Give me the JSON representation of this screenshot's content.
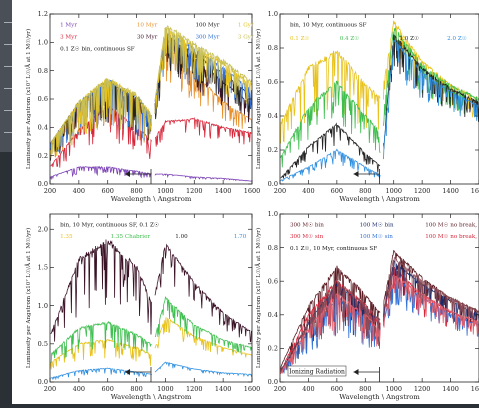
{
  "panels": [
    {
      "id": "tl",
      "xlabel": "Wavelength \\ Angstrom",
      "ylabel": "Luminosity per Angstrom (x10⁷ L☉/Å at 1 M☉/yr)",
      "xlim": [
        200,
        1600
      ],
      "ylim": [
        0,
        1.2
      ],
      "xticks": [
        "200",
        "400",
        "600",
        "800",
        "1000",
        "1200",
        "1400",
        "1600"
      ],
      "yticks": [
        "0.0",
        "0.2",
        "0.4",
        "0.6",
        "0.8",
        "1.0",
        "1.2"
      ],
      "annotations": [
        {
          "text": "1 Myr",
          "color": "#7a3fb5"
        },
        {
          "text": "10 Myr",
          "color": "#e8912c"
        },
        {
          "text": "100 Myr",
          "color": "#222222"
        },
        {
          "text": "1 Gyr",
          "color": "#e8c21a"
        },
        {
          "text": "3 Myr",
          "color": "#d6263a"
        },
        {
          "text": "30 Myr",
          "color": "#3a1226"
        },
        {
          "text": "300 Myr",
          "color": "#2f6fd6"
        },
        {
          "text": "3 Gyr",
          "color": "#c8bf55"
        },
        {
          "text": "0.1 Z☉ bin, continuous SF",
          "color": "#111111"
        }
      ]
    },
    {
      "id": "tr",
      "xlabel": "Wavelength \\ Angstrom",
      "ylabel": "Luminosity per Angstrom (x10⁷ L☉/Å at 1 M☉/yr)",
      "xlim": [
        200,
        1600
      ],
      "ylim": [
        0,
        1.0
      ],
      "xticks": [
        "200",
        "400",
        "600",
        "800",
        "1000",
        "1200",
        "1400",
        "1600"
      ],
      "yticks": [
        "0.0",
        "0.2",
        "0.4",
        "0.6",
        "0.8",
        "1.0"
      ],
      "annotations": [
        {
          "text": "bin, 10 Myr, continuous SF",
          "color": "#111111"
        },
        {
          "text": "0.1 Z☉",
          "color": "#e8c21a"
        },
        {
          "text": "0.4 Z☉",
          "color": "#3fbf4f"
        },
        {
          "text": "1.0 Z☉",
          "color": "#222222"
        },
        {
          "text": "2.0 Z☉",
          "color": "#2f8fe0"
        }
      ]
    },
    {
      "id": "bl",
      "xlabel": "Wavelength \\ Angstrom",
      "ylabel": "Luminosity per Angstrom (x10⁷ L☉/Å at 1 M☉/yr)",
      "xlim": [
        200,
        1600
      ],
      "ylim": [
        0,
        2.2
      ],
      "xticks": [
        "200",
        "400",
        "600",
        "800",
        "1000",
        "1200",
        "1400",
        "1600"
      ],
      "yticks": [
        "0.0",
        "0.5",
        "1.0",
        "1.5",
        "2.0"
      ],
      "annotations": [
        {
          "text": "bin, 10 Myr, continuous SF, 0.1 Z☉",
          "color": "#111111"
        },
        {
          "text": "1.35",
          "color": "#e8c21a"
        },
        {
          "text": "1.35 Chabrier",
          "color": "#3fbf4f"
        },
        {
          "text": "1.00",
          "color": "#222222"
        },
        {
          "text": "1.70",
          "color": "#2f8fe0"
        }
      ]
    },
    {
      "id": "br",
      "xlabel": "Wavelength \\ Angstrom",
      "ylabel": "Luminosity per Angstrom (x10⁷ L☉/Å at 1 M☉/yr)",
      "xlim": [
        200,
        1600
      ],
      "ylim": [
        0,
        1.0
      ],
      "xticks": [
        "200",
        "400",
        "600",
        "800",
        "1000",
        "1200",
        "1400",
        "1600"
      ],
      "yticks": [
        "0.0",
        "0.2",
        "0.4",
        "0.6",
        "0.8",
        "1.0"
      ],
      "annotations": [
        {
          "text": "300 M☉ bin",
          "color": "#5a1a22"
        },
        {
          "text": "100 M☉ bin",
          "color": "#1a2a6a"
        },
        {
          "text": "100 M☉ no break, bin",
          "color": "#5a1a22"
        },
        {
          "text": "300 M☉ sin",
          "color": "#d6263a"
        },
        {
          "text": "100 M☉ sin",
          "color": "#2f6fd6"
        },
        {
          "text": "100 M☉ no break, sin",
          "color": "#d6263a"
        },
        {
          "text": "0.1 Z☉, 10 Myr, continuous SF",
          "color": "#111111"
        }
      ],
      "ionizing_label": "Ionizing Radiation"
    }
  ],
  "colors": {
    "background": "#2b2f36",
    "sheet": "#ffffff"
  },
  "chart_data": [
    {
      "type": "line",
      "xlabel": "Wavelength \\ Angstrom",
      "ylabel": "Luminosity per Angstrom (x10⁷ L☉/Å at 1 M☉/yr)",
      "xlim": [
        200,
        1600
      ],
      "ylim": [
        0,
        1.2
      ],
      "x": [
        200,
        400,
        600,
        800,
        912,
        1000,
        1200,
        1400,
        1600
      ],
      "series": [
        {
          "name": "1 Myr",
          "color": "#7a3fb5",
          "values": [
            0.05,
            0.12,
            0.12,
            0.09,
            0.07,
            0.07,
            0.05,
            0.04,
            0.02
          ]
        },
        {
          "name": "3 Myr",
          "color": "#d6263a",
          "values": [
            0.12,
            0.38,
            0.55,
            0.4,
            0.3,
            0.44,
            0.46,
            0.4,
            0.36
          ]
        },
        {
          "name": "10 Myr",
          "color": "#e8912c",
          "values": [
            0.28,
            0.55,
            0.7,
            0.58,
            0.45,
            0.98,
            0.78,
            0.58,
            0.45
          ]
        },
        {
          "name": "30 Myr",
          "color": "#3a1226",
          "values": [
            0.28,
            0.56,
            0.72,
            0.6,
            0.46,
            1.02,
            0.88,
            0.72,
            0.56
          ]
        },
        {
          "name": "100 Myr",
          "color": "#222222",
          "values": [
            0.28,
            0.57,
            0.72,
            0.61,
            0.47,
            1.05,
            0.92,
            0.78,
            0.62
          ]
        },
        {
          "name": "300 Myr",
          "color": "#2f6fd6",
          "values": [
            0.28,
            0.57,
            0.73,
            0.62,
            0.47,
            1.08,
            0.95,
            0.82,
            0.66
          ]
        },
        {
          "name": "1 Gyr",
          "color": "#e8c21a",
          "values": [
            0.28,
            0.58,
            0.74,
            0.62,
            0.48,
            1.1,
            0.97,
            0.85,
            0.7
          ]
        },
        {
          "name": "3 Gyr",
          "color": "#c8bf55",
          "values": [
            0.28,
            0.58,
            0.74,
            0.63,
            0.48,
            1.12,
            0.99,
            0.87,
            0.72
          ]
        }
      ]
    },
    {
      "type": "line",
      "xlabel": "Wavelength \\ Angstrom",
      "ylabel": "Luminosity per Angstrom (x10⁷ L☉/Å at 1 M☉/yr)",
      "xlim": [
        200,
        1600
      ],
      "ylim": [
        0,
        1.0
      ],
      "x": [
        200,
        400,
        600,
        800,
        912,
        1000,
        1200,
        1400,
        1600
      ],
      "series": [
        {
          "name": "0.1 Z☉",
          "color": "#e8c21a",
          "values": [
            0.35,
            0.68,
            0.78,
            0.58,
            0.5,
            0.95,
            0.72,
            0.58,
            0.5
          ]
        },
        {
          "name": "0.4 Z☉",
          "color": "#3fbf4f",
          "values": [
            0.15,
            0.45,
            0.6,
            0.4,
            0.3,
            0.92,
            0.7,
            0.58,
            0.5
          ]
        },
        {
          "name": "1.0 Z☉",
          "color": "#222222",
          "values": [
            0.03,
            0.22,
            0.35,
            0.18,
            0.1,
            0.88,
            0.68,
            0.56,
            0.48
          ]
        },
        {
          "name": "2.0 Z☉",
          "color": "#2f8fe0",
          "values": [
            0.02,
            0.1,
            0.2,
            0.1,
            0.05,
            0.85,
            0.66,
            0.54,
            0.46
          ]
        }
      ]
    },
    {
      "type": "line",
      "xlabel": "Wavelength \\ Angstrom",
      "ylabel": "Luminosity per Angstrom (x10⁷ L☉/Å at 1 M☉/yr)",
      "xlim": [
        200,
        1600
      ],
      "ylim": [
        0,
        2.2
      ],
      "x": [
        200,
        400,
        600,
        800,
        912,
        1000,
        1200,
        1400,
        1600
      ],
      "series": [
        {
          "name": "1.35",
          "color": "#e8c21a",
          "values": [
            0.25,
            0.5,
            0.55,
            0.45,
            0.35,
            0.85,
            0.6,
            0.45,
            0.35
          ]
        },
        {
          "name": "1.35 Chabrier",
          "color": "#3fbf4f",
          "values": [
            0.35,
            0.7,
            0.78,
            0.62,
            0.48,
            1.1,
            0.75,
            0.55,
            0.45
          ]
        },
        {
          "name": "1.00",
          "color": "#3a1226",
          "values": [
            0.6,
            1.6,
            1.85,
            1.5,
            1.0,
            1.8,
            1.3,
            0.9,
            0.65
          ]
        },
        {
          "name": "1.70",
          "color": "#2f8fe0",
          "values": [
            0.05,
            0.15,
            0.18,
            0.13,
            0.1,
            0.26,
            0.17,
            0.12,
            0.1
          ]
        }
      ]
    },
    {
      "type": "line",
      "xlabel": "Wavelength \\ Angstrom",
      "ylabel": "Luminosity per Angstrom (x10⁷ L☉/Å at 1 M☉/yr)",
      "xlim": [
        200,
        1600
      ],
      "ylim": [
        0,
        1.0
      ],
      "x": [
        200,
        400,
        600,
        800,
        912,
        1000,
        1200,
        1400,
        1600
      ],
      "series": [
        {
          "name": "300 M☉ bin",
          "color": "#5a1a22",
          "values": [
            0.08,
            0.45,
            0.68,
            0.52,
            0.4,
            0.78,
            0.62,
            0.5,
            0.42
          ]
        },
        {
          "name": "300 M☉ sin",
          "color": "#d6263a",
          "values": [
            0.06,
            0.4,
            0.6,
            0.46,
            0.34,
            0.68,
            0.52,
            0.42,
            0.34
          ]
        },
        {
          "name": "100 M☉ bin",
          "color": "#1a2a6a",
          "values": [
            0.06,
            0.35,
            0.58,
            0.44,
            0.34,
            0.72,
            0.58,
            0.48,
            0.4
          ]
        },
        {
          "name": "100 M☉ sin",
          "color": "#2f6fd6",
          "values": [
            0.05,
            0.3,
            0.5,
            0.38,
            0.28,
            0.62,
            0.5,
            0.4,
            0.34
          ]
        },
        {
          "name": "100 M☉ no break, bin",
          "color": "#8a4a55",
          "values": [
            0.06,
            0.36,
            0.6,
            0.46,
            0.36,
            0.74,
            0.6,
            0.5,
            0.42
          ]
        },
        {
          "name": "100 M☉ no break, sin",
          "color": "#e06070",
          "values": [
            0.05,
            0.32,
            0.52,
            0.4,
            0.3,
            0.64,
            0.52,
            0.42,
            0.36
          ]
        }
      ]
    }
  ]
}
